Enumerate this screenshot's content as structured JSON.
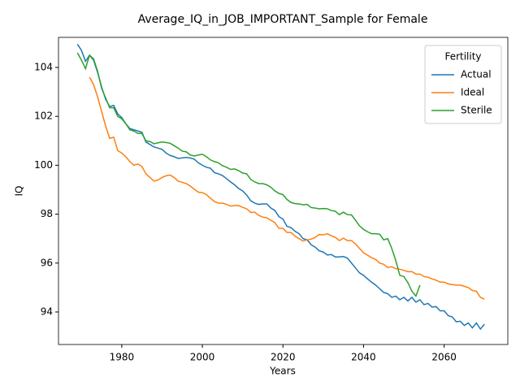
{
  "chart_data": {
    "type": "line",
    "title": "Average_IQ_in_JOB_IMPORTANT_Sample for Female",
    "xlabel": "Years",
    "ylabel": "IQ",
    "legend_title": "Fertility",
    "legend": "upper right",
    "xlim": [
      1964.3,
      2075.8
    ],
    "xticks": [
      1980,
      2000,
      2020,
      2040,
      2060
    ],
    "ylim": [
      92.67,
      105.23
    ],
    "yticks": [
      94,
      96,
      98,
      100,
      102,
      104
    ],
    "grid": false,
    "series": [
      {
        "name": "Actual",
        "color": "#1f77b4",
        "x": [
          1969,
          1970,
          1971,
          1972,
          1973,
          1974,
          1975,
          1976,
          1977,
          1978,
          1979,
          1980,
          1981,
          1982,
          1983,
          1984,
          1985,
          1986,
          1987,
          1988,
          1989,
          1990,
          1991,
          1992,
          1993,
          1994,
          1995,
          1996,
          1997,
          1998,
          1999,
          2000,
          2001,
          2002,
          2003,
          2004,
          2005,
          2006,
          2007,
          2008,
          2009,
          2010,
          2011,
          2012,
          2013,
          2014,
          2015,
          2016,
          2017,
          2018,
          2019,
          2020,
          2021,
          2022,
          2023,
          2024,
          2025,
          2026,
          2027,
          2028,
          2029,
          2030,
          2031,
          2032,
          2033,
          2034,
          2035,
          2036,
          2037,
          2038,
          2039,
          2040,
          2041,
          2042,
          2043,
          2044,
          2045,
          2046,
          2047,
          2048,
          2049,
          2050,
          2051,
          2052,
          2053,
          2054,
          2055,
          2056,
          2057,
          2058,
          2059,
          2060,
          2061,
          2062,
          2063,
          2064,
          2065,
          2066,
          2067,
          2068,
          2069,
          2070
        ],
        "values": [
          104.95,
          104.7,
          104.25,
          104.5,
          104.3,
          103.8,
          103.2,
          102.7,
          102.4,
          102.45,
          102.1,
          101.95,
          101.7,
          101.5,
          101.45,
          101.4,
          101.35,
          100.95,
          100.85,
          100.75,
          100.7,
          100.65,
          100.5,
          100.4,
          100.35,
          100.28,
          100.3,
          100.32,
          100.3,
          100.25,
          100.1,
          100.0,
          99.92,
          99.88,
          99.7,
          99.65,
          99.58,
          99.45,
          99.32,
          99.2,
          99.05,
          98.95,
          98.78,
          98.55,
          98.45,
          98.4,
          98.42,
          98.42,
          98.25,
          98.15,
          97.9,
          97.8,
          97.5,
          97.45,
          97.3,
          97.2,
          97.0,
          96.95,
          96.75,
          96.65,
          96.5,
          96.45,
          96.33,
          96.35,
          96.25,
          96.25,
          96.27,
          96.2,
          96.0,
          95.8,
          95.6,
          95.5,
          95.35,
          95.22,
          95.1,
          94.95,
          94.8,
          94.75,
          94.6,
          94.65,
          94.5,
          94.6,
          94.45,
          94.6,
          94.4,
          94.5,
          94.3,
          94.35,
          94.2,
          94.22,
          94.05,
          94.05,
          93.85,
          93.8,
          93.6,
          93.62,
          93.45,
          93.55,
          93.35,
          93.55,
          93.3,
          93.5
        ]
      },
      {
        "name": "Ideal",
        "color": "#ff7f0e",
        "x": [
          1972,
          1973,
          1974,
          1975,
          1976,
          1977,
          1978,
          1979,
          1980,
          1981,
          1982,
          1983,
          1984,
          1985,
          1986,
          1987,
          1988,
          1989,
          1990,
          1991,
          1992,
          1993,
          1994,
          1995,
          1996,
          1997,
          1998,
          1999,
          2000,
          2001,
          2002,
          2003,
          2004,
          2005,
          2006,
          2007,
          2008,
          2009,
          2010,
          2011,
          2012,
          2013,
          2014,
          2015,
          2016,
          2017,
          2018,
          2019,
          2020,
          2021,
          2022,
          2023,
          2024,
          2025,
          2026,
          2027,
          2028,
          2029,
          2030,
          2031,
          2032,
          2033,
          2034,
          2035,
          2036,
          2037,
          2038,
          2039,
          2040,
          2041,
          2042,
          2043,
          2044,
          2045,
          2046,
          2047,
          2048,
          2049,
          2050,
          2051,
          2052,
          2053,
          2054,
          2055,
          2056,
          2057,
          2058,
          2059,
          2060,
          2061,
          2062,
          2063,
          2064,
          2065,
          2066,
          2067,
          2068,
          2069,
          2070
        ],
        "values": [
          103.6,
          103.3,
          102.8,
          102.2,
          101.6,
          101.1,
          101.15,
          100.6,
          100.5,
          100.35,
          100.15,
          100.0,
          100.05,
          99.95,
          99.65,
          99.5,
          99.35,
          99.4,
          99.5,
          99.57,
          99.6,
          99.5,
          99.35,
          99.3,
          99.25,
          99.15,
          99.02,
          98.9,
          98.88,
          98.8,
          98.65,
          98.52,
          98.45,
          98.45,
          98.4,
          98.33,
          98.35,
          98.35,
          98.28,
          98.22,
          98.07,
          98.08,
          97.95,
          97.88,
          97.85,
          97.75,
          97.65,
          97.42,
          97.42,
          97.25,
          97.25,
          97.1,
          97.0,
          96.9,
          96.95,
          96.98,
          97.05,
          97.17,
          97.15,
          97.2,
          97.12,
          97.05,
          96.92,
          97.02,
          96.92,
          96.92,
          96.78,
          96.6,
          96.42,
          96.32,
          96.22,
          96.15,
          96.0,
          95.95,
          95.82,
          95.85,
          95.77,
          95.75,
          95.7,
          95.65,
          95.65,
          95.55,
          95.55,
          95.45,
          95.42,
          95.35,
          95.3,
          95.22,
          95.22,
          95.15,
          95.12,
          95.1,
          95.1,
          95.05,
          95.0,
          94.88,
          94.85,
          94.6,
          94.52
        ]
      },
      {
        "name": "Sterile",
        "color": "#2ca02c",
        "x": [
          1969,
          1970,
          1971,
          1972,
          1973,
          1974,
          1975,
          1976,
          1977,
          1978,
          1979,
          1980,
          1981,
          1982,
          1983,
          1984,
          1985,
          1986,
          1987,
          1988,
          1989,
          1990,
          1991,
          1992,
          1993,
          1994,
          1995,
          1996,
          1997,
          1998,
          1999,
          2000,
          2001,
          2002,
          2003,
          2004,
          2005,
          2006,
          2007,
          2008,
          2009,
          2010,
          2011,
          2012,
          2013,
          2014,
          2015,
          2016,
          2017,
          2018,
          2019,
          2020,
          2021,
          2022,
          2023,
          2024,
          2025,
          2026,
          2027,
          2028,
          2029,
          2030,
          2031,
          2032,
          2033,
          2034,
          2035,
          2036,
          2037,
          2038,
          2039,
          2040,
          2041,
          2042,
          2043,
          2044,
          2045,
          2046,
          2047,
          2048,
          2049,
          2050,
          2051,
          2052,
          2053,
          2054
        ],
        "values": [
          104.6,
          104.3,
          103.95,
          104.5,
          104.35,
          103.85,
          103.15,
          102.75,
          102.35,
          102.35,
          102.0,
          101.9,
          101.7,
          101.45,
          101.4,
          101.3,
          101.3,
          101.0,
          100.97,
          100.88,
          100.92,
          100.95,
          100.93,
          100.9,
          100.8,
          100.7,
          100.58,
          100.55,
          100.42,
          100.38,
          100.42,
          100.45,
          100.35,
          100.22,
          100.15,
          100.1,
          99.98,
          99.92,
          99.83,
          99.85,
          99.78,
          99.68,
          99.65,
          99.42,
          99.32,
          99.25,
          99.25,
          99.2,
          99.1,
          98.95,
          98.85,
          98.8,
          98.6,
          98.48,
          98.43,
          98.42,
          98.38,
          98.4,
          98.27,
          98.25,
          98.22,
          98.23,
          98.22,
          98.15,
          98.12,
          97.98,
          98.08,
          97.98,
          97.97,
          97.75,
          97.52,
          97.38,
          97.28,
          97.2,
          97.2,
          97.18,
          96.95,
          97.0,
          96.6,
          96.1,
          95.5,
          95.45,
          95.2,
          94.85,
          94.65,
          95.1
        ]
      }
    ]
  }
}
